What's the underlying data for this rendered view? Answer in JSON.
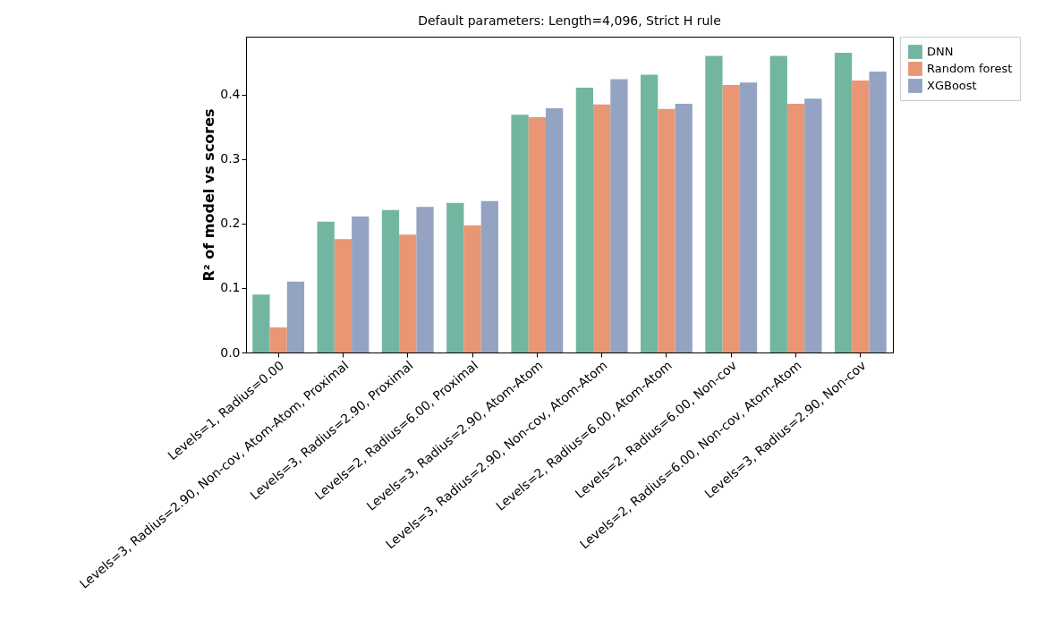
{
  "chart_data": {
    "type": "bar",
    "title": "Default parameters: Length=4,096, Strict H rule",
    "ylabel": "R² of model vs scores",
    "categories": [
      "Levels=1, Radius=0.00",
      "Levels=3, Radius=2.90, Non-cov, Atom-Atom, Proximal",
      "Levels=3, Radius=2.90, Proximal",
      "Levels=2, Radius=6.00, Proximal",
      "Levels=3, Radius=2.90, Atom-Atom",
      "Levels=3, Radius=2.90, Non-cov, Atom-Atom",
      "Levels=2, Radius=6.00, Atom-Atom",
      "Levels=2, Radius=6.00, Non-cov",
      "Levels=2, Radius=6.00, Non-cov, Atom-Atom",
      "Levels=3, Radius=2.90, Non-cov"
    ],
    "series": [
      {
        "name": "DNN",
        "color": "#72b6a1",
        "values": [
          0.09,
          0.203,
          0.221,
          0.232,
          0.369,
          0.411,
          0.431,
          0.46,
          0.46,
          0.465
        ]
      },
      {
        "name": "Random forest",
        "color": "#e99675",
        "values": [
          0.039,
          0.176,
          0.183,
          0.197,
          0.365,
          0.385,
          0.378,
          0.415,
          0.386,
          0.422
        ]
      },
      {
        "name": "XGBoost",
        "color": "#95a3c3",
        "values": [
          0.11,
          0.211,
          0.226,
          0.235,
          0.379,
          0.424,
          0.386,
          0.419,
          0.394,
          0.436
        ]
      }
    ],
    "ylim": [
      0,
      0.49
    ],
    "yticks": [
      {
        "value": 0,
        "label": "0.0"
      },
      0.1,
      0.2,
      0.3,
      0.4
    ],
    "grid": false,
    "legend": "top right"
  }
}
